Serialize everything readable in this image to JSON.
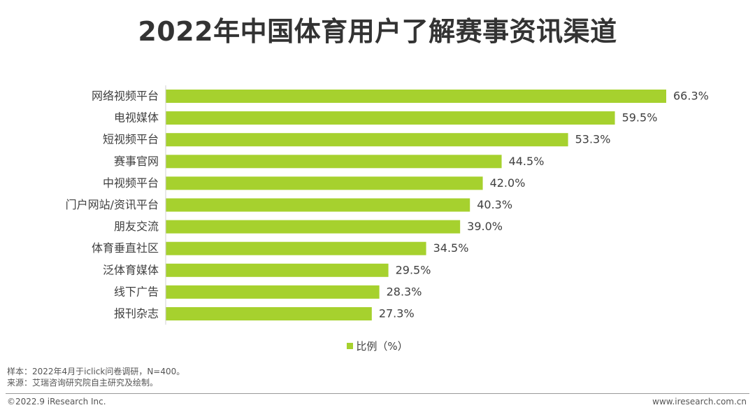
{
  "title": "2022年中国体育用户了解赛事资讯渠道",
  "chart_data": {
    "type": "bar",
    "orientation": "horizontal",
    "categories": [
      "网络视频平台",
      "电视媒体",
      "短视频平台",
      "赛事官网",
      "中视频平台",
      "门户网站/资讯平台",
      "朋友交流",
      "体育垂直社区",
      "泛体育媒体",
      "线下广告",
      "报刊杂志"
    ],
    "values": [
      66.3,
      59.5,
      53.3,
      44.5,
      42.0,
      40.3,
      39.0,
      34.5,
      29.5,
      28.3,
      27.3
    ],
    "value_labels": [
      "66.3%",
      "59.5%",
      "53.3%",
      "44.5%",
      "42.0%",
      "40.3%",
      "39.0%",
      "34.5%",
      "29.5%",
      "28.3%",
      "27.3%"
    ],
    "series": [
      {
        "name": "比例（%）"
      }
    ],
    "xlim": [
      0,
      70
    ],
    "grid": false,
    "legend_position": "bottom",
    "bar_color": "#a6d12e"
  },
  "notes": {
    "sample": "样本：2022年4月于iclick问卷调研，N=400。",
    "source": "来源：艾瑞咨询研究院自主研究及绘制。"
  },
  "footer": {
    "copyright": "©2022.9 iResearch Inc.",
    "website": "www.iresearch.com.cn"
  }
}
